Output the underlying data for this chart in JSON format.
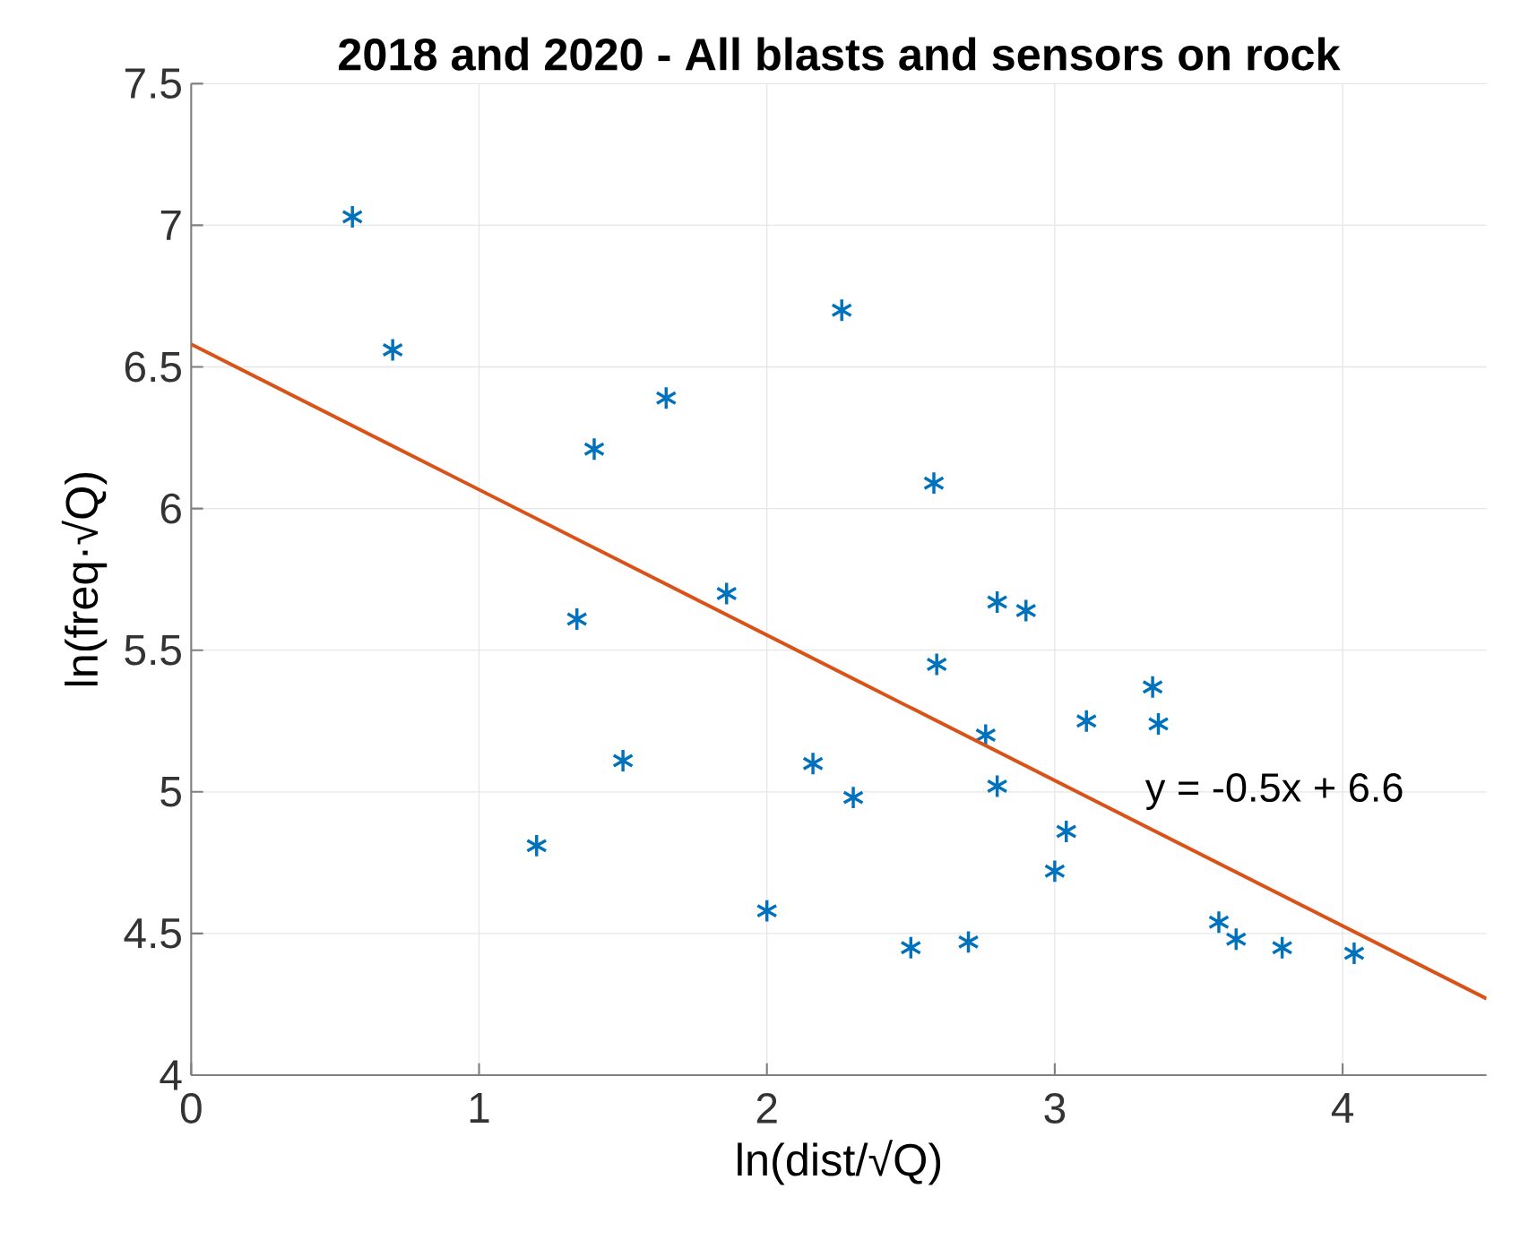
{
  "chart_data": {
    "type": "scatter",
    "title": "2018 and 2020 - All blasts and sensors on rock",
    "xlabel": "ln(dist/√Q)",
    "ylabel": "ln(freq·√Q)",
    "x": [
      0.56,
      0.7,
      1.2,
      1.34,
      1.4,
      1.5,
      1.65,
      1.86,
      2.0,
      2.16,
      2.26,
      2.3,
      2.5,
      2.58,
      2.59,
      2.7,
      2.76,
      2.8,
      2.8,
      2.9,
      3.0,
      3.04,
      3.11,
      3.34,
      3.36,
      3.57,
      3.63,
      3.79,
      4.04
    ],
    "series": [
      {
        "color": "#0072bd",
        "marker": "cross",
        "values": [
          7.03,
          6.56,
          4.81,
          5.61,
          6.21,
          5.11,
          6.39,
          5.7,
          4.58,
          5.1,
          6.7,
          4.98,
          4.45,
          6.09,
          5.45,
          4.47,
          5.2,
          5.67,
          5.02,
          5.64,
          4.72,
          4.86,
          5.25,
          5.37,
          5.24,
          4.54,
          4.48,
          4.45,
          4.43
        ]
      },
      {
        "type": "line",
        "color": "#d95319",
        "marker": "none",
        "x": [
          0,
          4.5
        ],
        "values": [
          6.58,
          4.27
        ]
      }
    ],
    "annotations": [
      "y = -0.5x + 6.6"
    ],
    "xlim": [
      0,
      4.5
    ],
    "ylim": [
      4,
      7.5
    ],
    "xticks": [
      0,
      1,
      2,
      3,
      4
    ],
    "yticks": [
      4,
      4.5,
      5,
      5.5,
      6,
      6.5,
      7,
      7.5
    ],
    "grid": true
  }
}
